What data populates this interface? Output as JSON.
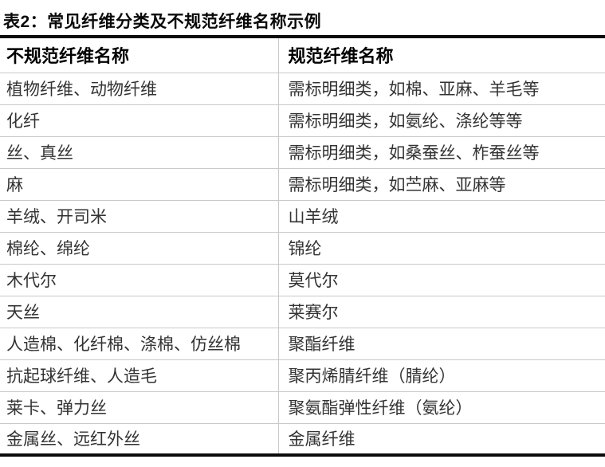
{
  "title": "表2：常见纤维分类及不规范纤维名称示例",
  "table": {
    "headers": [
      "不规范纤维名称",
      "规范纤维名称"
    ],
    "rows": [
      [
        "植物纤维、动物纤维",
        "需标明细类，如棉、亚麻、羊毛等"
      ],
      [
        "化纤",
        "需标明细类，如氨纶、涤纶等等"
      ],
      [
        "丝、真丝",
        "需标明细类，如桑蚕丝、柞蚕丝等"
      ],
      [
        "麻",
        "需标明细类，如苎麻、亚麻等"
      ],
      [
        "羊绒、开司米",
        "山羊绒"
      ],
      [
        "棉纶、绵纶",
        "锦纶"
      ],
      [
        "木代尔",
        "莫代尔"
      ],
      [
        "天丝",
        "莱赛尔"
      ],
      [
        "人造棉、化纤棉、涤棉、仿丝棉",
        "聚酯纤维"
      ],
      [
        "抗起球纤维、人造毛",
        "聚丙烯腈纤维（腈纶）"
      ],
      [
        "莱卡、弹力丝",
        "聚氨酯弹性纤维（氨纶）"
      ],
      [
        "金属丝、远红外丝",
        "金属纤维"
      ]
    ]
  },
  "colors": {
    "heavy_border": "#0b0b0b",
    "row_divider": "#c9c9c9",
    "body_text": "#333333",
    "header_text": "#000000"
  }
}
